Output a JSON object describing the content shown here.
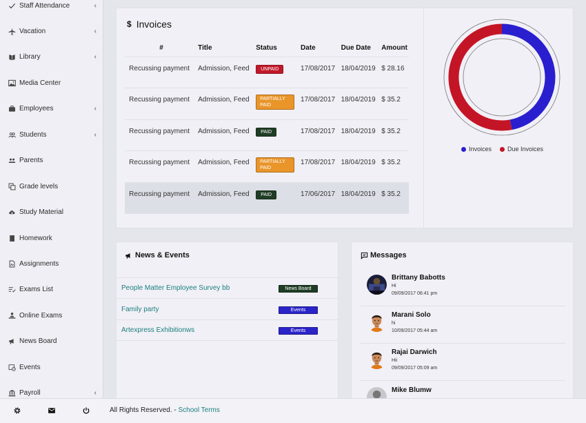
{
  "sidebar": {
    "items": [
      {
        "label": "Staff Attendance",
        "icon": "check-icon",
        "chevron": "‹"
      },
      {
        "label": "Vacation",
        "icon": "plane-icon",
        "chevron": "‹"
      },
      {
        "label": "Library",
        "icon": "book-icon",
        "chevron": "‹"
      },
      {
        "label": "Media Center",
        "icon": "image-icon",
        "chevron": ""
      },
      {
        "label": "Employees",
        "icon": "briefcase-icon",
        "chevron": "‹"
      },
      {
        "label": "Students",
        "icon": "users-icon",
        "chevron": "‹"
      },
      {
        "label": "Parents",
        "icon": "group-icon",
        "chevron": ""
      },
      {
        "label": "Grade levels",
        "icon": "copy-icon",
        "chevron": ""
      },
      {
        "label": "Study Material",
        "icon": "cloud-download-icon",
        "chevron": ""
      },
      {
        "label": "Homework",
        "icon": "notebook-icon",
        "chevron": ""
      },
      {
        "label": "Assignments",
        "icon": "file-icon",
        "chevron": ""
      },
      {
        "label": "Exams List",
        "icon": "list-check-icon",
        "chevron": ""
      },
      {
        "label": "Online Exams",
        "icon": "laptop-user-icon",
        "chevron": ""
      },
      {
        "label": "News Board",
        "icon": "megaphone-icon",
        "chevron": ""
      },
      {
        "label": "Events",
        "icon": "calendar-clock-icon",
        "chevron": ""
      },
      {
        "label": "Payroll",
        "icon": "bank-icon",
        "chevron": "‹"
      }
    ]
  },
  "footer": {
    "text": "All Rights Reserved. - ",
    "link": "School Terms",
    "icons": [
      "gear-icon",
      "mail-icon",
      "power-icon"
    ]
  },
  "invoices": {
    "symbol": "$",
    "title": "Invoices",
    "columns": [
      "#",
      "Title",
      "Status",
      "Date",
      "Due Date",
      "Amount"
    ],
    "rows": [
      {
        "num": "Recussing payment",
        "title": "Admission, Feed",
        "status": "UNPAID",
        "status_type": "unpaid",
        "date": "17/08/2017",
        "due": "18/04/2019",
        "amount": "$ 28.16"
      },
      {
        "num": "Recussing payment",
        "title": "Admission, Feed",
        "status": "PARTIALLY PAID",
        "status_type": "partial",
        "date": "17/08/2017",
        "due": "18/04/2019",
        "amount": "$ 35.2"
      },
      {
        "num": "Recussing payment",
        "title": "Admission, Feed",
        "status": "PAID",
        "status_type": "paid",
        "date": "17/08/2017",
        "due": "18/04/2019",
        "amount": "$ 35.2"
      },
      {
        "num": "Recussing payment",
        "title": "Admission, Feed",
        "status": "PARTIALLY PAID",
        "status_type": "partial",
        "date": "17/08/2017",
        "due": "18/04/2019",
        "amount": "$ 35.2"
      },
      {
        "num": "Recussing payment",
        "title": "Admission, Feed",
        "status": "PAID",
        "status_type": "paid",
        "date": "17/06/2017",
        "due": "18/04/2019",
        "amount": "$ 35.2"
      }
    ]
  },
  "chart_data": {
    "type": "pie",
    "title": "",
    "categories": [
      "Invoices",
      "Due Invoices"
    ],
    "values": [
      47,
      53
    ],
    "colors": [
      "#2a1fcf",
      "#c41526"
    ],
    "legend": "bottom",
    "donut": true
  },
  "news": {
    "title": "News & Events",
    "items": [
      {
        "title": "People Matter Employee Survey bb",
        "tag": "News Board",
        "tag_type": "board"
      },
      {
        "title": "Family party",
        "tag": "Events",
        "tag_type": "events"
      },
      {
        "title": "Artexpress Exhibitionws",
        "tag": "Events",
        "tag_type": "events"
      }
    ]
  },
  "messages": {
    "title": "Messages",
    "items": [
      {
        "name": "Brittany Babotts",
        "text": "Hi",
        "time": "09/09/2017 06:41 pm",
        "avatar": "photo-avatar"
      },
      {
        "name": "Marani Solo",
        "text": "hi",
        "time": "10/09/2017 05:44 am",
        "avatar": "cartoon-avatar"
      },
      {
        "name": "Rajai Darwich",
        "text": "Hii",
        "time": "09/09/2017 05:09 am",
        "avatar": "cartoon-avatar"
      },
      {
        "name": "Mike Blumw",
        "text": "",
        "time": "",
        "avatar": "grey-avatar"
      }
    ]
  }
}
